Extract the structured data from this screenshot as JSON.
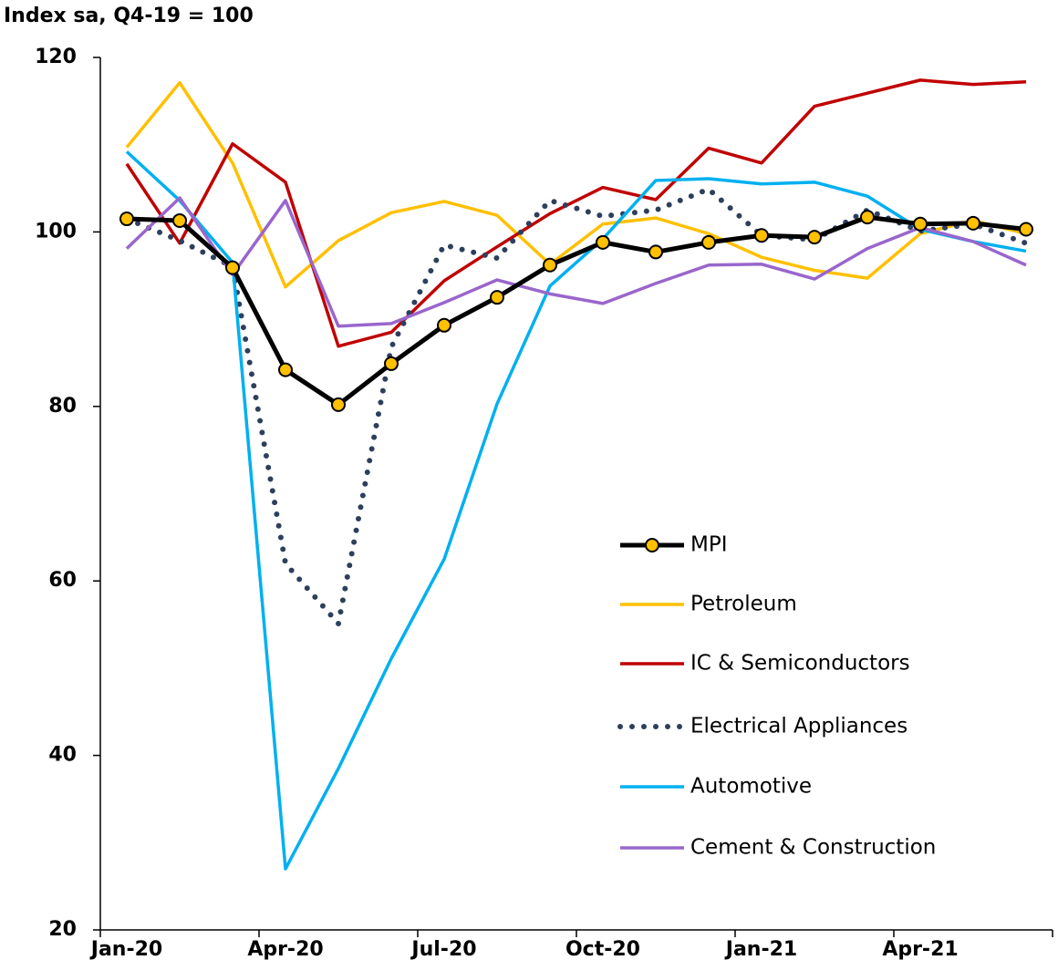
{
  "chart_data": {
    "type": "line",
    "ylabel": "Index sa, Q4-19 = 100",
    "categories": [
      "Jan-20",
      null,
      null,
      "Apr-20",
      null,
      null,
      "Jul-20",
      null,
      null,
      "Oct-20",
      null,
      null,
      "Jan-21",
      null,
      null,
      "Apr-21",
      null,
      null
    ],
    "ylim": [
      20,
      120
    ],
    "yticks": [
      20,
      40,
      60,
      80,
      100,
      120
    ],
    "legend": "center-right",
    "series": [
      {
        "name": "MPI",
        "color": "#000000",
        "marker": true,
        "values": [
          101.5,
          101.3,
          95.9,
          84.2,
          80.2,
          84.9,
          89.3,
          92.5,
          96.2,
          98.8,
          97.7,
          98.8,
          99.6,
          99.4,
          101.7,
          100.9,
          101.0,
          100.3
        ]
      },
      {
        "name": "Petroleum",
        "color": "#ffc000",
        "values": [
          109.7,
          117.1,
          107.9,
          93.7,
          99.0,
          102.2,
          103.5,
          101.9,
          96.3,
          100.9,
          101.6,
          99.8,
          97.1,
          95.6,
          94.7,
          99.8,
          101.3,
          99.8
        ]
      },
      {
        "name": "IC & Semiconductors",
        "color": "#c00000",
        "values": [
          107.8,
          98.7,
          110.1,
          105.7,
          86.9,
          88.5,
          94.4,
          98.3,
          102.1,
          105.1,
          103.7,
          109.6,
          107.9,
          114.4,
          115.9,
          117.4,
          116.9,
          117.2
        ]
      },
      {
        "name": "Electrical Appliances",
        "color": "#2e3f5c",
        "dotted": true,
        "values": [
          101.5,
          99.0,
          96.0,
          62.0,
          55.1,
          86.8,
          98.5,
          97.0,
          103.6,
          101.8,
          102.5,
          104.9,
          99.6,
          99.1,
          102.5,
          100.1,
          100.9,
          98.7
        ]
      },
      {
        "name": "Automotive",
        "color": "#00b0f0",
        "values": [
          109.2,
          103.6,
          96.5,
          27.0,
          38.5,
          51.1,
          62.5,
          80.3,
          93.8,
          99.2,
          105.9,
          106.1,
          105.5,
          105.7,
          104.1,
          100.3,
          98.9,
          97.8
        ]
      },
      {
        "name": "Cement & Construction",
        "color": "#9966cc",
        "values": [
          98.1,
          103.9,
          95.1,
          103.6,
          89.2,
          89.5,
          91.9,
          94.5,
          92.9,
          91.8,
          94.1,
          96.2,
          96.3,
          94.6,
          98.1,
          100.5,
          98.9,
          96.2
        ]
      }
    ]
  }
}
